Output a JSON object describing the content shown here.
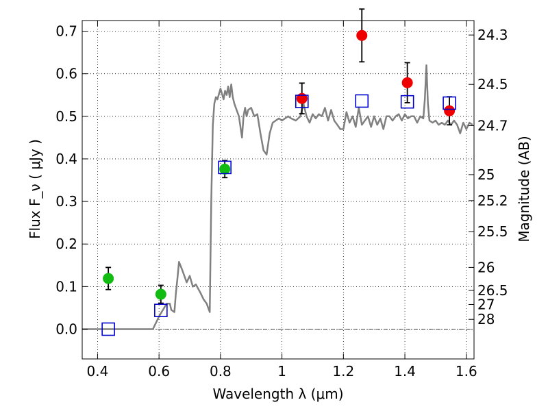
{
  "chart_data": {
    "type": "scatter",
    "xlabel": "Wavelength  λ (μm)",
    "ylabel": "Flux  F_ν  ( μJy )",
    "y2label": "Magnitude (AB)",
    "xlim": [
      0.35,
      1.625
    ],
    "ylim": [
      -0.07,
      0.725
    ],
    "grid": true,
    "x_ticks": [
      0.4,
      0.6,
      0.8,
      1.0,
      1.2,
      1.4,
      1.6
    ],
    "x_tick_labels": [
      "0.4",
      "0.6",
      "0.8",
      "1",
      "1.2",
      "1.4",
      "1.6"
    ],
    "y_ticks": [
      0.0,
      0.1,
      0.2,
      0.3,
      0.4,
      0.5,
      0.6,
      0.7
    ],
    "y_tick_labels": [
      "0.0",
      "0.1",
      "0.2",
      "0.3",
      "0.4",
      "0.5",
      "0.6",
      "0.7"
    ],
    "magnitude_ticks": [
      {
        "flux": 0.691,
        "label": "24.3"
      },
      {
        "flux": 0.575,
        "label": "24.5"
      },
      {
        "flux": 0.478,
        "label": "24.7"
      },
      {
        "flux": 0.363,
        "label": "25"
      },
      {
        "flux": 0.302,
        "label": "25.2"
      },
      {
        "flux": 0.229,
        "label": "25.5"
      },
      {
        "flux": 0.145,
        "label": "26"
      },
      {
        "flux": 0.091,
        "label": "26.5"
      },
      {
        "flux": 0.058,
        "label": "27"
      },
      {
        "flux": 0.023,
        "label": "28"
      }
    ],
    "colors": {
      "spectrum": "#808080",
      "green": "#11bb11",
      "red": "#ee0000",
      "model_square": "#0000cc",
      "errorbar": "#000000",
      "zero_line": "#000000"
    },
    "series": [
      {
        "marker": "circle-green",
        "points": [
          {
            "x": 0.435,
            "y": 0.119,
            "err": 0.026
          },
          {
            "x": 0.606,
            "y": 0.082,
            "err": 0.021
          },
          {
            "x": 0.814,
            "y": 0.376,
            "err": 0.02
          }
        ]
      },
      {
        "marker": "circle-red",
        "points": [
          {
            "x": 1.065,
            "y": 0.542,
            "err": 0.036
          },
          {
            "x": 1.26,
            "y": 0.69,
            "err": 0.062
          },
          {
            "x": 1.408,
            "y": 0.579,
            "err": 0.047
          },
          {
            "x": 1.545,
            "y": 0.513,
            "err": 0.033
          }
        ]
      },
      {
        "marker": "square-blue",
        "points": [
          {
            "x": 0.435,
            "y": 0.0
          },
          {
            "x": 0.606,
            "y": 0.044
          },
          {
            "x": 0.814,
            "y": 0.38
          },
          {
            "x": 1.065,
            "y": 0.535
          },
          {
            "x": 1.26,
            "y": 0.536
          },
          {
            "x": 1.408,
            "y": 0.534
          },
          {
            "x": 1.545,
            "y": 0.531
          }
        ]
      },
      {
        "marker": "line-spectrum",
        "x": [
          0.35,
          0.58,
          0.6,
          0.625,
          0.635,
          0.64,
          0.65,
          0.655,
          0.66,
          0.665,
          0.675,
          0.69,
          0.7,
          0.71,
          0.72,
          0.735,
          0.745,
          0.755,
          0.765,
          0.77,
          0.775,
          0.78,
          0.785,
          0.79,
          0.8,
          0.81,
          0.815,
          0.82,
          0.825,
          0.83,
          0.835,
          0.84,
          0.845,
          0.85,
          0.86,
          0.87,
          0.875,
          0.88,
          0.885,
          0.89,
          0.9,
          0.91,
          0.92,
          0.93,
          0.94,
          0.95,
          0.96,
          0.97,
          0.98,
          0.99,
          1.0,
          1.01,
          1.02,
          1.03,
          1.045,
          1.06,
          1.07,
          1.08,
          1.09,
          1.1,
          1.11,
          1.12,
          1.13,
          1.14,
          1.15,
          1.16,
          1.17,
          1.18,
          1.19,
          1.2,
          1.21,
          1.22,
          1.23,
          1.24,
          1.25,
          1.26,
          1.27,
          1.28,
          1.29,
          1.3,
          1.31,
          1.32,
          1.33,
          1.34,
          1.35,
          1.36,
          1.37,
          1.38,
          1.39,
          1.4,
          1.41,
          1.42,
          1.43,
          1.44,
          1.45,
          1.46,
          1.465,
          1.47,
          1.475,
          1.48,
          1.49,
          1.5,
          1.51,
          1.52,
          1.53,
          1.54,
          1.55,
          1.56,
          1.57,
          1.58,
          1.59,
          1.6,
          1.61,
          1.62
        ],
        "y": [
          0.0,
          0.0,
          0.03,
          0.06,
          0.06,
          0.045,
          0.04,
          0.085,
          0.12,
          0.158,
          0.14,
          0.11,
          0.125,
          0.1,
          0.105,
          0.085,
          0.07,
          0.06,
          0.04,
          0.3,
          0.48,
          0.53,
          0.545,
          0.54,
          0.565,
          0.54,
          0.56,
          0.55,
          0.57,
          0.545,
          0.575,
          0.545,
          0.53,
          0.52,
          0.5,
          0.45,
          0.5,
          0.52,
          0.5,
          0.515,
          0.52,
          0.5,
          0.505,
          0.46,
          0.42,
          0.41,
          0.46,
          0.485,
          0.49,
          0.495,
          0.49,
          0.495,
          0.5,
          0.495,
          0.49,
          0.5,
          0.53,
          0.5,
          0.485,
          0.505,
          0.495,
          0.505,
          0.5,
          0.52,
          0.49,
          0.515,
          0.49,
          0.48,
          0.47,
          0.47,
          0.51,
          0.485,
          0.5,
          0.475,
          0.52,
          0.48,
          0.49,
          0.5,
          0.475,
          0.5,
          0.48,
          0.495,
          0.47,
          0.5,
          0.5,
          0.49,
          0.5,
          0.505,
          0.49,
          0.505,
          0.495,
          0.5,
          0.5,
          0.485,
          0.5,
          0.495,
          0.54,
          0.62,
          0.53,
          0.49,
          0.485,
          0.49,
          0.48,
          0.485,
          0.48,
          0.49,
          0.48,
          0.49,
          0.48,
          0.46,
          0.485,
          0.47,
          0.485,
          0.48
        ]
      }
    ]
  }
}
